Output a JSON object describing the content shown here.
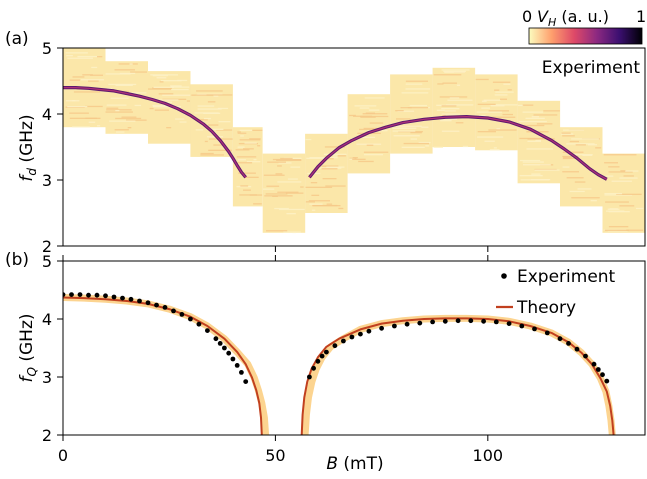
{
  "panel_labels": [
    "(a)",
    "(b)"
  ],
  "colorbar": {
    "min_label": "0",
    "max_label": "1",
    "label_main": "V",
    "label_sub": "H",
    "label_suffix": " (a. u.)",
    "colors": [
      "#fcfdbf",
      "#fe9f6d",
      "#de4968",
      "#8c2981",
      "#3b0f70",
      "#000004"
    ]
  },
  "chart_data": [
    {
      "type": "heatmap",
      "panel": "(a)",
      "ylabel_main": "f",
      "ylabel_sub": "d",
      "ylabel_suffix": " (GHz)",
      "xlim": [
        0,
        137
      ],
      "ylim": [
        2,
        5
      ],
      "yticks": [
        2,
        3,
        4,
        5
      ],
      "xticks": [
        50,
        100
      ],
      "annotation": "Experiment",
      "background_color": "#fbe7a9",
      "scan_windows": [
        {
          "x": [
            0,
            10
          ],
          "y": [
            3.8,
            5.0
          ]
        },
        {
          "x": [
            10,
            20
          ],
          "y": [
            3.7,
            4.8
          ]
        },
        {
          "x": [
            20,
            30
          ],
          "y": [
            3.55,
            4.65
          ]
        },
        {
          "x": [
            30,
            40
          ],
          "y": [
            3.35,
            4.45
          ]
        },
        {
          "x": [
            40,
            47
          ],
          "y": [
            2.6,
            3.8
          ]
        },
        {
          "x": [
            47,
            57
          ],
          "y": [
            2.2,
            3.4
          ]
        },
        {
          "x": [
            57,
            67
          ],
          "y": [
            2.5,
            3.7
          ]
        },
        {
          "x": [
            67,
            77
          ],
          "y": [
            3.1,
            4.3
          ]
        },
        {
          "x": [
            77,
            87
          ],
          "y": [
            3.4,
            4.6
          ]
        },
        {
          "x": [
            87,
            97
          ],
          "y": [
            3.5,
            4.7
          ]
        },
        {
          "x": [
            97,
            107
          ],
          "y": [
            3.45,
            4.6
          ]
        },
        {
          "x": [
            107,
            117
          ],
          "y": [
            2.95,
            4.2
          ]
        },
        {
          "x": [
            117,
            127
          ],
          "y": [
            2.6,
            3.8
          ]
        },
        {
          "x": [
            127,
            137
          ],
          "y": [
            2.2,
            3.4
          ]
        }
      ],
      "resonance_series": [
        {
          "x": [
            0,
            3,
            6,
            9,
            12,
            15,
            18,
            21,
            24,
            27,
            30,
            33,
            35,
            37,
            39,
            40,
            41,
            42,
            43
          ],
          "y": [
            4.4,
            4.4,
            4.39,
            4.37,
            4.35,
            4.31,
            4.27,
            4.22,
            4.16,
            4.08,
            3.98,
            3.85,
            3.74,
            3.6,
            3.43,
            3.33,
            3.22,
            3.12,
            3.04
          ]
        },
        {
          "x": [
            58,
            60,
            62,
            65,
            68,
            72,
            76,
            80,
            85,
            90,
            95,
            100,
            105,
            110,
            115,
            118,
            121,
            124,
            126,
            128
          ],
          "y": [
            3.04,
            3.2,
            3.33,
            3.49,
            3.6,
            3.72,
            3.8,
            3.87,
            3.92,
            3.95,
            3.96,
            3.94,
            3.88,
            3.77,
            3.6,
            3.47,
            3.33,
            3.17,
            3.08,
            3.01
          ]
        }
      ]
    },
    {
      "type": "line",
      "panel": "(b)",
      "ylabel_main": "f",
      "ylabel_sub": "Q",
      "ylabel_suffix": " (GHz)",
      "xlabel_main": "B",
      "xlabel_suffix": " (mT)",
      "xlim": [
        0,
        137
      ],
      "ylim": [
        2,
        5
      ],
      "yticks": [
        2,
        3,
        4,
        5
      ],
      "xticks": [
        0,
        50,
        100
      ],
      "legend_position": "top-right",
      "series": [
        {
          "name": "Experiment",
          "kind": "scatter",
          "color": "#000000",
          "x": [
            0,
            2,
            4,
            6,
            8,
            10,
            12,
            14,
            16,
            18,
            20,
            22,
            24,
            26,
            28,
            30,
            32,
            34,
            36,
            37,
            38,
            39,
            40,
            41,
            42,
            43,
            58,
            59,
            60,
            61,
            62,
            64,
            66,
            68,
            70,
            72,
            75,
            78,
            81,
            84,
            87,
            90,
            93,
            96,
            99,
            102,
            105,
            108,
            111,
            114,
            117,
            119,
            121,
            123,
            125,
            126,
            127,
            128
          ],
          "y": [
            4.42,
            4.42,
            4.42,
            4.41,
            4.41,
            4.4,
            4.38,
            4.36,
            4.34,
            4.31,
            4.28,
            4.24,
            4.2,
            4.14,
            4.08,
            4.0,
            3.91,
            3.8,
            3.66,
            3.58,
            3.5,
            3.41,
            3.31,
            3.2,
            3.08,
            2.92,
            3.0,
            3.15,
            3.27,
            3.36,
            3.43,
            3.54,
            3.62,
            3.69,
            3.74,
            3.79,
            3.84,
            3.88,
            3.91,
            3.93,
            3.95,
            3.96,
            3.97,
            3.97,
            3.96,
            3.95,
            3.92,
            3.88,
            3.83,
            3.76,
            3.66,
            3.58,
            3.48,
            3.36,
            3.22,
            3.13,
            3.04,
            2.93
          ]
        },
        {
          "name": "Theory",
          "kind": "line",
          "color": "#c1401f",
          "x": [
            0,
            5,
            10,
            15,
            20,
            25,
            30,
            34,
            38,
            41,
            43,
            44.5,
            45.5,
            46.2,
            46.6,
            46.8,
            56.2,
            56.4,
            56.8,
            57.5,
            58.5,
            60,
            62,
            65,
            70,
            75,
            80,
            85,
            90,
            95,
            100,
            105,
            110,
            115,
            119,
            122,
            124.5,
            126.5,
            128,
            128.8,
            129.3,
            129.6
          ],
          "y": [
            4.37,
            4.36,
            4.34,
            4.31,
            4.26,
            4.17,
            4.04,
            3.88,
            3.66,
            3.43,
            3.22,
            2.99,
            2.77,
            2.55,
            2.3,
            2.0,
            2.0,
            2.35,
            2.65,
            2.92,
            3.14,
            3.34,
            3.52,
            3.66,
            3.82,
            3.92,
            3.97,
            4.0,
            4.01,
            4.01,
            4.0,
            3.96,
            3.88,
            3.76,
            3.6,
            3.42,
            3.22,
            2.98,
            2.75,
            2.5,
            2.25,
            2.0
          ]
        }
      ],
      "unlabeled_series": [
        {
          "kind": "band",
          "color": "#fcd490",
          "x": [
            0,
            5,
            10,
            15,
            20,
            25,
            30,
            34,
            38,
            41,
            43.5,
            45,
            46,
            46.8,
            47.4,
            47.7,
            57,
            57.3,
            57.8,
            58.6,
            59.6,
            61,
            63,
            66,
            70,
            75,
            80,
            85,
            90,
            95,
            100,
            105,
            110,
            115,
            119,
            122,
            124.5,
            126.5,
            127.8,
            128.5,
            129,
            129.3
          ],
          "y": [
            4.37,
            4.36,
            4.34,
            4.31,
            4.26,
            4.17,
            4.04,
            3.88,
            3.66,
            3.43,
            3.22,
            2.99,
            2.77,
            2.55,
            2.3,
            2.0,
            2.0,
            2.35,
            2.65,
            2.92,
            3.14,
            3.34,
            3.52,
            3.66,
            3.82,
            3.92,
            3.97,
            4.0,
            4.01,
            4.01,
            4.0,
            3.96,
            3.88,
            3.76,
            3.6,
            3.42,
            3.22,
            2.98,
            2.75,
            2.5,
            2.25,
            2.0
          ]
        }
      ]
    }
  ]
}
